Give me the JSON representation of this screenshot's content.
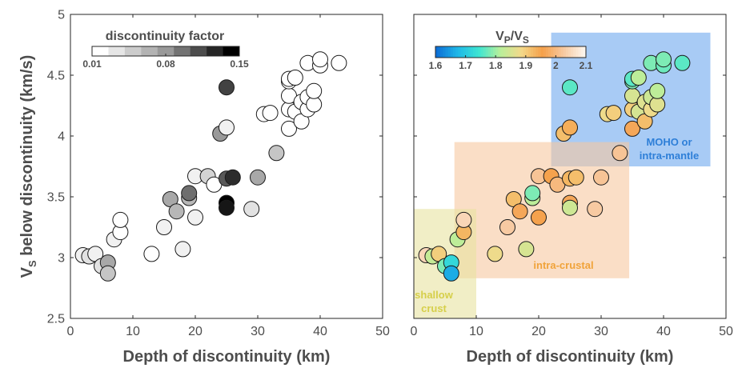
{
  "chart_data": [
    {
      "type": "scatter",
      "xlabel": "Depth of discontinuity (km)",
      "ylabel": "V",
      "ylabel_sub": "S",
      "ylabel_rest": " below discontinuity (km/s)",
      "xlim": [
        0,
        50
      ],
      "ylim": [
        2.5,
        5
      ],
      "xticks": [
        "0",
        "10",
        "20",
        "30",
        "40",
        "50"
      ],
      "yticks": [
        "2.5",
        "3",
        "3.5",
        "4",
        "4.5",
        "5"
      ],
      "colorbar": {
        "title": "discontinuity factor",
        "range": [
          0.01,
          0.15
        ],
        "tick_labels": [
          "0.01",
          "0.08",
          "0.15"
        ],
        "tick_values": [
          0.01,
          0.08,
          0.15
        ],
        "colors": [
          "#ffffff",
          "#e6e6e6",
          "#cccccc",
          "#b3b3b3",
          "#999999",
          "#737373",
          "#4d4d4d",
          "#262626",
          "#000000"
        ]
      },
      "points": [
        {
          "x": 2,
          "y": 3.02,
          "c": 0.02
        },
        {
          "x": 3,
          "y": 3.01,
          "c": 0.03
        },
        {
          "x": 4,
          "y": 3.03,
          "c": 0.02
        },
        {
          "x": 5,
          "y": 2.93,
          "c": 0.03
        },
        {
          "x": 6,
          "y": 2.96,
          "c": 0.07
        },
        {
          "x": 6,
          "y": 2.87,
          "c": 0.05
        },
        {
          "x": 7,
          "y": 3.15,
          "c": 0.02
        },
        {
          "x": 8,
          "y": 3.21,
          "c": 0.01
        },
        {
          "x": 8,
          "y": 3.31,
          "c": 0.01
        },
        {
          "x": 13,
          "y": 3.03,
          "c": 0.01
        },
        {
          "x": 15,
          "y": 3.25,
          "c": 0.02
        },
        {
          "x": 16,
          "y": 3.48,
          "c": 0.07
        },
        {
          "x": 17,
          "y": 3.38,
          "c": 0.06
        },
        {
          "x": 18,
          "y": 3.07,
          "c": 0.02
        },
        {
          "x": 19,
          "y": 3.49,
          "c": 0.06
        },
        {
          "x": 19,
          "y": 3.53,
          "c": 0.1
        },
        {
          "x": 20,
          "y": 3.33,
          "c": 0.02
        },
        {
          "x": 20,
          "y": 3.67,
          "c": 0.02
        },
        {
          "x": 22,
          "y": 3.67,
          "c": 0.04
        },
        {
          "x": 23,
          "y": 3.6,
          "c": 0.01
        },
        {
          "x": 24,
          "y": 4.02,
          "c": 0.08
        },
        {
          "x": 25,
          "y": 4.07,
          "c": 0.02
        },
        {
          "x": 25,
          "y": 3.65,
          "c": 0.11
        },
        {
          "x": 25,
          "y": 3.45,
          "c": 0.15
        },
        {
          "x": 25,
          "y": 3.41,
          "c": 0.14
        },
        {
          "x": 25,
          "y": 4.4,
          "c": 0.12
        },
        {
          "x": 26,
          "y": 3.66,
          "c": 0.13
        },
        {
          "x": 29,
          "y": 3.4,
          "c": 0.03
        },
        {
          "x": 30,
          "y": 3.66,
          "c": 0.07
        },
        {
          "x": 31,
          "y": 4.18,
          "c": 0.01
        },
        {
          "x": 32,
          "y": 4.19,
          "c": 0.01
        },
        {
          "x": 33,
          "y": 3.86,
          "c": 0.05
        },
        {
          "x": 35,
          "y": 4.06,
          "c": 0.01
        },
        {
          "x": 35,
          "y": 4.22,
          "c": 0.01
        },
        {
          "x": 35,
          "y": 4.33,
          "c": 0.01
        },
        {
          "x": 35,
          "y": 4.45,
          "c": 0.01
        },
        {
          "x": 35,
          "y": 4.47,
          "c": 0.01
        },
        {
          "x": 36,
          "y": 4.48,
          "c": 0.01
        },
        {
          "x": 36,
          "y": 4.2,
          "c": 0.01
        },
        {
          "x": 37,
          "y": 4.12,
          "c": 0.01
        },
        {
          "x": 37,
          "y": 4.28,
          "c": 0.01
        },
        {
          "x": 38,
          "y": 4.22,
          "c": 0.01
        },
        {
          "x": 38,
          "y": 4.32,
          "c": 0.01
        },
        {
          "x": 38,
          "y": 4.6,
          "c": 0.01
        },
        {
          "x": 39,
          "y": 4.26,
          "c": 0.01
        },
        {
          "x": 39,
          "y": 4.37,
          "c": 0.01
        },
        {
          "x": 40,
          "y": 4.58,
          "c": 0.01
        },
        {
          "x": 40,
          "y": 4.63,
          "c": 0.01
        },
        {
          "x": 43,
          "y": 4.6,
          "c": 0.01
        }
      ]
    },
    {
      "type": "scatter",
      "xlabel": "Depth of discontinuity (km)",
      "xlim": [
        0,
        50
      ],
      "ylim": [
        2.5,
        5
      ],
      "xticks": [
        "0",
        "10",
        "20",
        "30",
        "40",
        "50"
      ],
      "colorbar": {
        "title_main": "V",
        "title_sub1": "P",
        "title_slash": "/V",
        "title_sub2": "S",
        "range": [
          1.6,
          2.1
        ],
        "tick_labels": [
          "1.6",
          "1.7",
          "1.8",
          "1.9",
          "2",
          "2.1"
        ],
        "tick_values": [
          1.6,
          1.7,
          1.8,
          1.9,
          2.0,
          2.1
        ],
        "colors": [
          "#0c6fd6",
          "#1fb8e8",
          "#3ee6d2",
          "#b8ef9a",
          "#f3d98a",
          "#f5a04a",
          "#f7c9a0",
          "#fdf6ee"
        ]
      },
      "zones": [
        {
          "label": "MOHO or",
          "label2": "intra-mantle",
          "x": [
            22,
            47.5
          ],
          "y": [
            3.75,
            4.85
          ],
          "color": "#6ea8ef",
          "text_color": "#2e7fd8"
        },
        {
          "label": "intra-crustal",
          "x": [
            6.5,
            34.5
          ],
          "y": [
            2.83,
            3.95
          ],
          "color": "#f7c8a0",
          "text_color": "#f0a33a"
        },
        {
          "label": "shallow",
          "label2": "crust",
          "x": [
            0,
            10
          ],
          "y": [
            2.5,
            3.4
          ],
          "color": "#e8e3a0",
          "text_color": "#d6cf4a"
        }
      ],
      "points": [
        {
          "x": 2,
          "y": 3.02,
          "c": 2.05
        },
        {
          "x": 3,
          "y": 3.01,
          "c": 1.83
        },
        {
          "x": 4,
          "y": 3.03,
          "c": 1.9
        },
        {
          "x": 5,
          "y": 2.93,
          "c": 1.78
        },
        {
          "x": 6,
          "y": 2.96,
          "c": 1.72
        },
        {
          "x": 6,
          "y": 2.87,
          "c": 1.66
        },
        {
          "x": 7,
          "y": 3.15,
          "c": 1.82
        },
        {
          "x": 8,
          "y": 3.21,
          "c": 1.93
        },
        {
          "x": 8,
          "y": 3.31,
          "c": 2.05
        },
        {
          "x": 13,
          "y": 3.03,
          "c": 1.88
        },
        {
          "x": 15,
          "y": 3.25,
          "c": 2.03
        },
        {
          "x": 16,
          "y": 3.48,
          "c": 1.92
        },
        {
          "x": 17,
          "y": 3.38,
          "c": 1.97
        },
        {
          "x": 18,
          "y": 3.07,
          "c": 1.85
        },
        {
          "x": 19,
          "y": 3.49,
          "c": 1.82
        },
        {
          "x": 19,
          "y": 3.53,
          "c": 1.78
        },
        {
          "x": 20,
          "y": 3.33,
          "c": 1.96
        },
        {
          "x": 20,
          "y": 3.67,
          "c": 2.02
        },
        {
          "x": 22,
          "y": 3.67,
          "c": 1.96
        },
        {
          "x": 23,
          "y": 3.6,
          "c": 2.0
        },
        {
          "x": 24,
          "y": 4.02,
          "c": 1.92
        },
        {
          "x": 25,
          "y": 4.07,
          "c": 1.94
        },
        {
          "x": 25,
          "y": 3.65,
          "c": 1.93
        },
        {
          "x": 25,
          "y": 3.45,
          "c": 1.97
        },
        {
          "x": 25,
          "y": 3.41,
          "c": 1.84
        },
        {
          "x": 25,
          "y": 4.4,
          "c": 1.76
        },
        {
          "x": 26,
          "y": 3.66,
          "c": 1.92
        },
        {
          "x": 29,
          "y": 3.4,
          "c": 2.03
        },
        {
          "x": 30,
          "y": 3.66,
          "c": 2.02
        },
        {
          "x": 31,
          "y": 4.18,
          "c": 1.88
        },
        {
          "x": 32,
          "y": 4.19,
          "c": 1.9
        },
        {
          "x": 33,
          "y": 3.86,
          "c": 2.02
        },
        {
          "x": 35,
          "y": 4.06,
          "c": 1.97
        },
        {
          "x": 35,
          "y": 4.22,
          "c": 1.9
        },
        {
          "x": 35,
          "y": 4.33,
          "c": 1.85
        },
        {
          "x": 35,
          "y": 4.45,
          "c": 1.78
        },
        {
          "x": 35,
          "y": 4.47,
          "c": 1.76
        },
        {
          "x": 36,
          "y": 4.48,
          "c": 1.82
        },
        {
          "x": 36,
          "y": 4.2,
          "c": 1.85
        },
        {
          "x": 37,
          "y": 4.12,
          "c": 1.92
        },
        {
          "x": 37,
          "y": 4.28,
          "c": 1.86
        },
        {
          "x": 38,
          "y": 4.22,
          "c": 1.88
        },
        {
          "x": 38,
          "y": 4.32,
          "c": 1.84
        },
        {
          "x": 38,
          "y": 4.6,
          "c": 1.78
        },
        {
          "x": 39,
          "y": 4.26,
          "c": 1.86
        },
        {
          "x": 39,
          "y": 4.37,
          "c": 1.82
        },
        {
          "x": 40,
          "y": 4.58,
          "c": 1.77
        },
        {
          "x": 40,
          "y": 4.63,
          "c": 1.78
        },
        {
          "x": 43,
          "y": 4.6,
          "c": 1.76
        }
      ]
    }
  ]
}
